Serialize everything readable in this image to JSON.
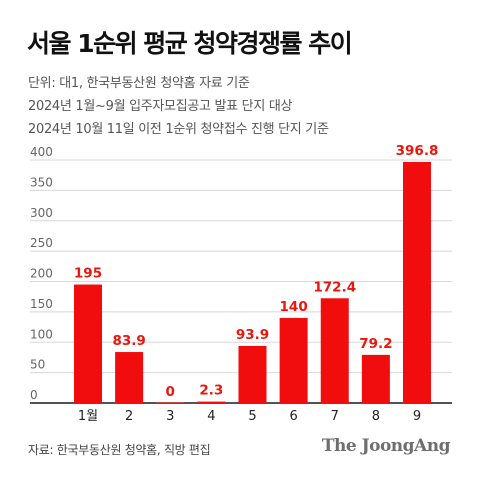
{
  "title": "서울 1순위 평균 청약경쟁률 추이",
  "notes": [
    "단위: 대1, 한국부동산원 청약홈 자료 기준",
    "2024년 1월~9월 입주자모집공고 발표 단지 대상",
    "2024년 10월 11일 이전 1순위 청약접수 진행 단지 기준"
  ],
  "source": "자료: 한국부동산원 청약홈, 직방 편집",
  "brand": "The JoongAng",
  "colors": {
    "bar": "#f10d0d",
    "label": "#e8170f",
    "axis": "#1a1a1a",
    "grid": "#d8d8d8"
  },
  "chart_data": {
    "type": "bar",
    "title": "서울 1순위 평균 청약경쟁률 추이",
    "categories": [
      "1월",
      "2",
      "3",
      "4",
      "5",
      "6",
      "7",
      "8",
      "9"
    ],
    "values": [
      195,
      83.9,
      0,
      2.3,
      93.9,
      140,
      172.4,
      79.2,
      396.8
    ],
    "value_labels": [
      "195",
      "83.9",
      "0",
      "2.3",
      "93.9",
      "140",
      "172.4",
      "79.2",
      "396.8"
    ],
    "yticks": [
      "0",
      "50",
      "100",
      "150",
      "200",
      "250",
      "300",
      "350",
      "400"
    ],
    "ylim": [
      0,
      400
    ],
    "xlabel": "",
    "ylabel": "",
    "grid": true
  }
}
